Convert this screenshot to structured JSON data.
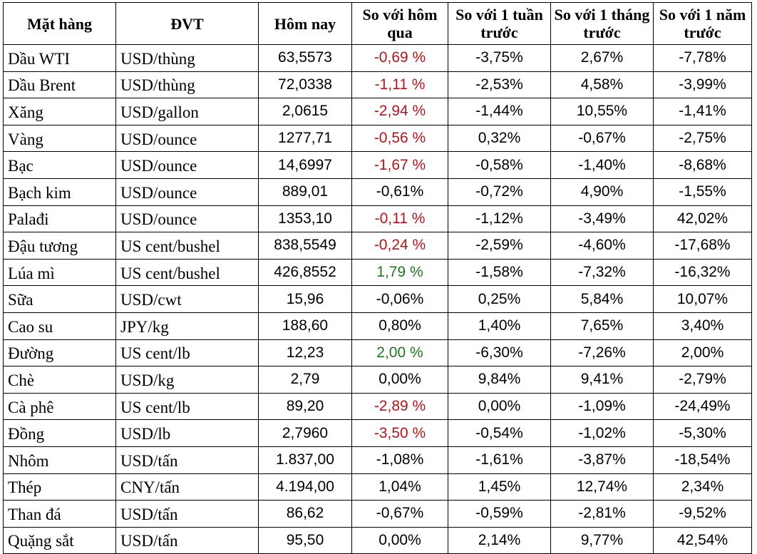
{
  "headers": {
    "item": "Mặt hàng",
    "unit": "ĐVT",
    "today": "Hôm nay",
    "vs_yesterday": "So với hôm qua",
    "vs_week": "So với 1 tuần trước",
    "vs_month": "So với 1 tháng trước",
    "vs_year": "So với 1 năm trước"
  },
  "rows": [
    {
      "item": "Dầu WTI",
      "unit": "USD/thùng",
      "today": "63,5573",
      "day": "-0,69 %",
      "day_color": "red",
      "week": "-3,75%",
      "month": "2,67%",
      "year": "-7,78%"
    },
    {
      "item": "Dầu Brent",
      "unit": "USD/thùng",
      "today": "72,0338",
      "day": "-1,11 %",
      "day_color": "red",
      "week": "-2,53%",
      "month": "4,58%",
      "year": "-3,99%"
    },
    {
      "item": "Xăng",
      "unit": "USD/gallon",
      "today": "2,0615",
      "day": "-2,94 %",
      "day_color": "red",
      "week": "-1,44%",
      "month": "10,55%",
      "year": "-1,41%"
    },
    {
      "item": "Vàng",
      "unit": "USD/ounce",
      "today": "1277,71",
      "day": "-0,56 %",
      "day_color": "red",
      "week": "0,32%",
      "month": "-0,67%",
      "year": "-2,75%"
    },
    {
      "item": "Bạc",
      "unit": "USD/ounce",
      "today": "14,6997",
      "day": "-1,67 %",
      "day_color": "red",
      "week": "-0,58%",
      "month": "-1,40%",
      "year": "-8,68%"
    },
    {
      "item": "Bạch kim",
      "unit": "USD/ounce",
      "today": "889,01",
      "day": "-0,61%",
      "day_color": "black",
      "week": "-0,72%",
      "month": "4,90%",
      "year": "-1,55%"
    },
    {
      "item": "Palađi",
      "unit": "USD/ounce",
      "today": "1353,10",
      "day": "-0,11 %",
      "day_color": "red",
      "week": "-1,12%",
      "month": "-3,49%",
      "year": "42,02%"
    },
    {
      "item": "Đậu tương",
      "unit": "US cent/bushel",
      "today": "838,5549",
      "day": "-0,24 %",
      "day_color": "red",
      "week": "-2,59%",
      "month": "-4,60%",
      "year": "-17,68%"
    },
    {
      "item": "Lúa mì",
      "unit": "US cent/bushel",
      "today": "426,8552",
      "day": "1,79 %",
      "day_color": "green",
      "week": "-1,58%",
      "month": "-7,32%",
      "year": "-16,32%"
    },
    {
      "item": "Sữa",
      "unit": "USD/cwt",
      "today": "15,96",
      "day": "-0,06%",
      "day_color": "black",
      "week": "0,25%",
      "month": "5,84%",
      "year": "10,07%"
    },
    {
      "item": "Cao su",
      "unit": "JPY/kg",
      "today": "188,60",
      "day": "0,80%",
      "day_color": "black",
      "week": "1,40%",
      "month": "7,65%",
      "year": "3,40%"
    },
    {
      "item": "Đường",
      "unit": "US cent/lb",
      "today": "12,23",
      "day": "2,00 %",
      "day_color": "green",
      "week": "-6,30%",
      "month": "-7,26%",
      "year": "2,00%"
    },
    {
      "item": "Chè",
      "unit": "USD/kg",
      "today": "2,79",
      "day": "0,00%",
      "day_color": "black",
      "week": "9,84%",
      "month": "9,41%",
      "year": "-2,79%"
    },
    {
      "item": "Cà phê",
      "unit": "US cent/lb",
      "today": "89,20",
      "day": "-2,89 %",
      "day_color": "red",
      "week": "0,00%",
      "month": "-1,09%",
      "year": "-24,49%"
    },
    {
      "item": "Đồng",
      "unit": "USD/lb",
      "today": "2,7960",
      "day": "-3,50 %",
      "day_color": "red",
      "week": "-0,54%",
      "month": "-1,02%",
      "year": "-5,30%"
    },
    {
      "item": "Nhôm",
      "unit": "USD/tấn",
      "today": "1.837,00",
      "day": "-1,08%",
      "day_color": "black",
      "week": "-1,61%",
      "month": "-3,87%",
      "year": "-18,54%"
    },
    {
      "item": "Thép",
      "unit": "CNY/tấn",
      "today": "4.194,00",
      "day": "1,04%",
      "day_color": "black",
      "week": "1,45%",
      "month": "12,74%",
      "year": "2,34%"
    },
    {
      "item": "Than đá",
      "unit": "USD/tấn",
      "today": "86,62",
      "day": "-0,67%",
      "day_color": "black",
      "week": "-0,59%",
      "month": "-2,81%",
      "year": "-9,52%"
    },
    {
      "item": "Quặng sắt",
      "unit": "USD/tấn",
      "today": "95,50",
      "day": "0,00%",
      "day_color": "black",
      "week": "2,14%",
      "month": "9,77%",
      "year": "42,54%"
    }
  ]
}
